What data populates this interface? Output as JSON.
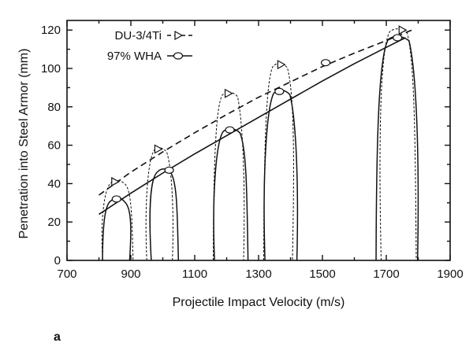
{
  "chart_data": {
    "type": "line",
    "panel_label": "a",
    "title": "",
    "xlabel": "Projectile Impact Velocity (m/s)",
    "ylabel": "Penetration into Steel Armor (mm)",
    "xlim": [
      700,
      1900
    ],
    "ylim": [
      0,
      125
    ],
    "x_ticks": [
      700,
      900,
      1100,
      1300,
      1500,
      1700,
      1900
    ],
    "y_ticks": [
      0,
      20,
      40,
      60,
      80,
      100,
      120
    ],
    "grid": false,
    "legend_position": "top-left",
    "series": [
      {
        "name": "DU-3/4Ti",
        "style": "dashed",
        "marker": "triangle-right",
        "fit_curve": {
          "x": [
            800,
            900,
            1000,
            1100,
            1200,
            1300,
            1400,
            1500,
            1600,
            1700,
            1780
          ],
          "y": [
            34,
            46,
            56.5,
            66.5,
            76,
            85,
            93,
            101,
            108,
            114.5,
            120
          ]
        },
        "points": {
          "x": [
            850,
            985,
            1205,
            1370,
            1750
          ],
          "y": [
            41,
            58,
            87,
            102,
            120
          ]
        }
      },
      {
        "name": "97% WHA",
        "style": "solid",
        "marker": "ellipse",
        "fit_curve": {
          "x": [
            800,
            900,
            1000,
            1100,
            1200,
            1300,
            1400,
            1500,
            1600,
            1700,
            1760
          ],
          "y": [
            24,
            35,
            45.5,
            55.5,
            65,
            74.5,
            84,
            93.5,
            102.5,
            111,
            116
          ]
        },
        "points": {
          "x": [
            855,
            1020,
            1210,
            1365,
            1510,
            1735
          ],
          "y": [
            32,
            47,
            68,
            88,
            103,
            116
          ]
        }
      }
    ],
    "craters": [
      {
        "series": "DU-3/4Ti",
        "x_left": 810,
        "x_right": 905,
        "top": 41
      },
      {
        "series": "97% WHA",
        "x_left": 815,
        "x_right": 900,
        "top": 32
      },
      {
        "series": "DU-3/4Ti",
        "x_left": 950,
        "x_right": 1030,
        "top": 58
      },
      {
        "series": "97% WHA",
        "x_left": 960,
        "x_right": 1045,
        "top": 47
      },
      {
        "series": "DU-3/4Ti",
        "x_left": 1160,
        "x_right": 1255,
        "top": 87
      },
      {
        "series": "97% WHA",
        "x_left": 1160,
        "x_right": 1265,
        "top": 68
      },
      {
        "series": "DU-3/4Ti",
        "x_left": 1320,
        "x_right": 1410,
        "top": 102
      },
      {
        "series": "97% WHA",
        "x_left": 1320,
        "x_right": 1420,
        "top": 88
      },
      {
        "series": "DU-3/4Ti",
        "x_left": 1680,
        "x_right": 1790,
        "top": 120
      },
      {
        "series": "97% WHA",
        "x_left": 1670,
        "x_right": 1800,
        "top": 116
      }
    ]
  }
}
